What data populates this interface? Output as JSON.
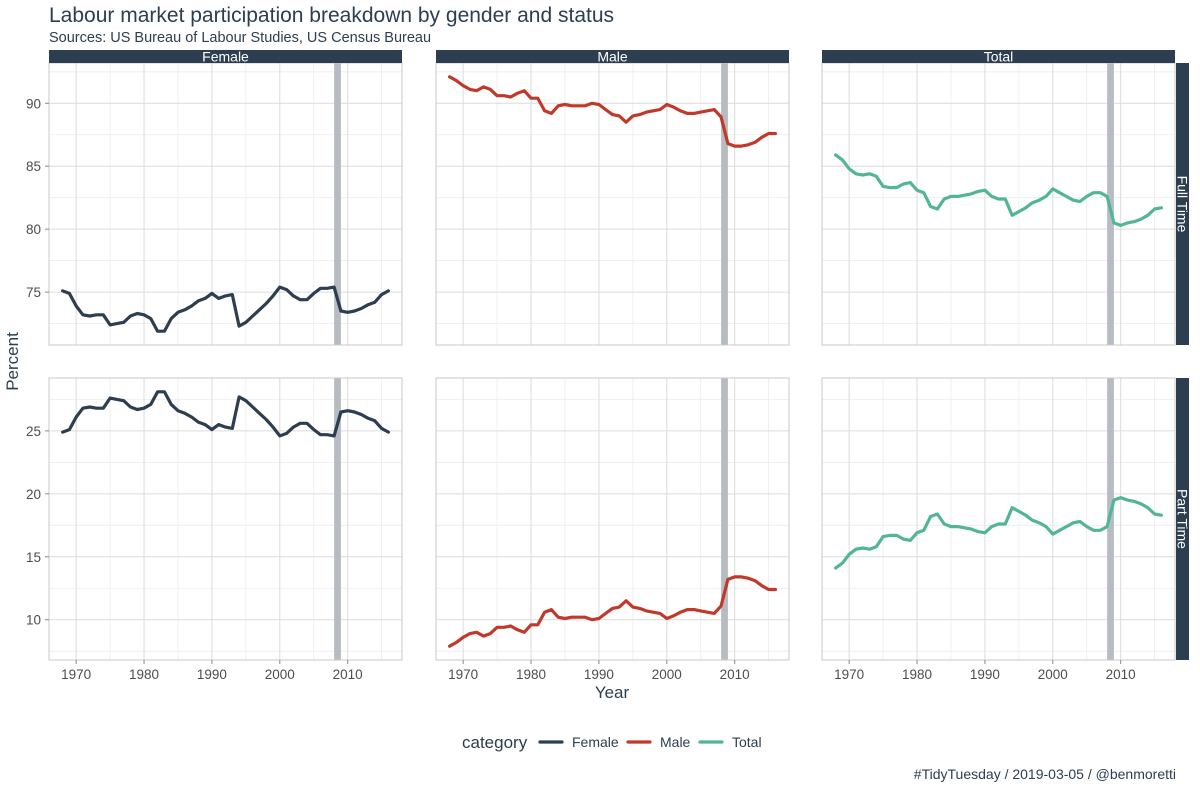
{
  "title": "Labour market participation breakdown by gender and status",
  "subtitle": "Sources: US Bureau of Labour Studies, US Census Bureau",
  "caption": "#TidyTuesday / 2019-03-05 / @benmoretti",
  "colors": {
    "Female": "#2c3e50",
    "Male": "#c0392b",
    "Total": "#52b596",
    "recession_band": "#b7bcc3",
    "strip_bg": "#2c3e50",
    "grid": "#dcdcdc",
    "panel_border": "#c8c8c8"
  },
  "chart_data": {
    "type": "line",
    "facets": {
      "columns": [
        "Female",
        "Male",
        "Total"
      ],
      "rows": [
        "Full Time",
        "Part Time"
      ]
    },
    "xlabel": "Year",
    "ylabel": "Percent",
    "x_ticks": [
      1970,
      1980,
      1990,
      2000,
      2010
    ],
    "xlim": [
      1966,
      2018
    ],
    "rows": [
      {
        "name": "Full Time",
        "ylim": [
          70.8,
          93.2
        ],
        "y_ticks": [
          75,
          80,
          85,
          90
        ]
      },
      {
        "name": "Part Time",
        "ylim": [
          6.8,
          29.2
        ],
        "y_ticks": [
          10,
          15,
          20,
          25
        ]
      }
    ],
    "highlight_band": {
      "x": [
        2008,
        2009
      ]
    },
    "legend": {
      "title": "category",
      "position": "bottom",
      "entries": [
        "Female",
        "Male",
        "Total"
      ]
    },
    "x": [
      1968,
      1969,
      1970,
      1971,
      1972,
      1973,
      1974,
      1975,
      1976,
      1977,
      1978,
      1979,
      1980,
      1981,
      1982,
      1983,
      1984,
      1985,
      1986,
      1987,
      1988,
      1989,
      1990,
      1991,
      1992,
      1993,
      1994,
      1995,
      1996,
      1997,
      1998,
      1999,
      2000,
      2001,
      2002,
      2003,
      2004,
      2005,
      2006,
      2007,
      2008,
      2009,
      2010,
      2011,
      2012,
      2013,
      2014,
      2015,
      2016
    ],
    "series": [
      {
        "name": "Female",
        "row": "Full Time",
        "values": [
          75.1,
          74.9,
          73.9,
          73.2,
          73.1,
          73.2,
          73.2,
          72.4,
          72.5,
          72.6,
          73.1,
          73.3,
          73.2,
          72.9,
          71.9,
          71.9,
          72.9,
          73.4,
          73.6,
          73.9,
          74.3,
          74.5,
          74.9,
          74.5,
          74.7,
          74.8,
          72.3,
          72.6,
          73.1,
          73.6,
          74.1,
          74.7,
          75.4,
          75.2,
          74.7,
          74.4,
          74.4,
          74.9,
          75.3,
          75.3,
          75.4,
          73.5,
          73.4,
          73.5,
          73.7,
          74.0,
          74.2,
          74.8,
          75.1
        ]
      },
      {
        "name": "Female",
        "row": "Part Time",
        "values": [
          24.9,
          25.1,
          26.1,
          26.8,
          26.9,
          26.8,
          26.8,
          27.6,
          27.5,
          27.4,
          26.9,
          26.7,
          26.8,
          27.1,
          28.1,
          28.1,
          27.1,
          26.6,
          26.4,
          26.1,
          25.7,
          25.5,
          25.1,
          25.5,
          25.3,
          25.2,
          27.7,
          27.4,
          26.9,
          26.4,
          25.9,
          25.3,
          24.6,
          24.8,
          25.3,
          25.6,
          25.6,
          25.1,
          24.7,
          24.7,
          24.6,
          26.5,
          26.6,
          26.5,
          26.3,
          26.0,
          25.8,
          25.2,
          24.9
        ]
      },
      {
        "name": "Male",
        "row": "Full Time",
        "values": [
          92.1,
          91.8,
          91.4,
          91.1,
          91.0,
          91.3,
          91.1,
          90.6,
          90.6,
          90.5,
          90.8,
          91.0,
          90.4,
          90.4,
          89.4,
          89.2,
          89.8,
          89.9,
          89.8,
          89.8,
          89.8,
          90.0,
          89.9,
          89.5,
          89.1,
          89.0,
          88.5,
          89.0,
          89.1,
          89.3,
          89.4,
          89.5,
          89.9,
          89.7,
          89.4,
          89.2,
          89.2,
          89.3,
          89.4,
          89.5,
          88.9,
          86.8,
          86.6,
          86.6,
          86.7,
          86.9,
          87.3,
          87.6,
          87.6
        ]
      },
      {
        "name": "Male",
        "row": "Part Time",
        "values": [
          7.9,
          8.2,
          8.6,
          8.9,
          9.0,
          8.7,
          8.9,
          9.4,
          9.4,
          9.5,
          9.2,
          9.0,
          9.6,
          9.6,
          10.6,
          10.8,
          10.2,
          10.1,
          10.2,
          10.2,
          10.2,
          10.0,
          10.1,
          10.5,
          10.9,
          11.0,
          11.5,
          11.0,
          10.9,
          10.7,
          10.6,
          10.5,
          10.1,
          10.3,
          10.6,
          10.8,
          10.8,
          10.7,
          10.6,
          10.5,
          11.1,
          13.2,
          13.4,
          13.4,
          13.3,
          13.1,
          12.7,
          12.4,
          12.4
        ]
      },
      {
        "name": "Total",
        "row": "Full Time",
        "values": [
          85.9,
          85.5,
          84.8,
          84.4,
          84.3,
          84.4,
          84.2,
          83.4,
          83.3,
          83.3,
          83.6,
          83.7,
          83.1,
          82.9,
          81.8,
          81.6,
          82.4,
          82.6,
          82.6,
          82.7,
          82.8,
          83.0,
          83.1,
          82.6,
          82.4,
          82.4,
          81.1,
          81.4,
          81.7,
          82.1,
          82.3,
          82.6,
          83.2,
          82.9,
          82.6,
          82.3,
          82.2,
          82.6,
          82.9,
          82.9,
          82.6,
          80.5,
          80.3,
          80.5,
          80.6,
          80.8,
          81.1,
          81.6,
          81.7
        ]
      },
      {
        "name": "Total",
        "row": "Part Time",
        "values": [
          14.1,
          14.5,
          15.2,
          15.6,
          15.7,
          15.6,
          15.8,
          16.6,
          16.7,
          16.7,
          16.4,
          16.3,
          16.9,
          17.1,
          18.2,
          18.4,
          17.6,
          17.4,
          17.4,
          17.3,
          17.2,
          17.0,
          16.9,
          17.4,
          17.6,
          17.6,
          18.9,
          18.6,
          18.3,
          17.9,
          17.7,
          17.4,
          16.8,
          17.1,
          17.4,
          17.7,
          17.8,
          17.4,
          17.1,
          17.1,
          17.4,
          19.5,
          19.7,
          19.5,
          19.4,
          19.2,
          18.9,
          18.4,
          18.3
        ]
      }
    ]
  }
}
